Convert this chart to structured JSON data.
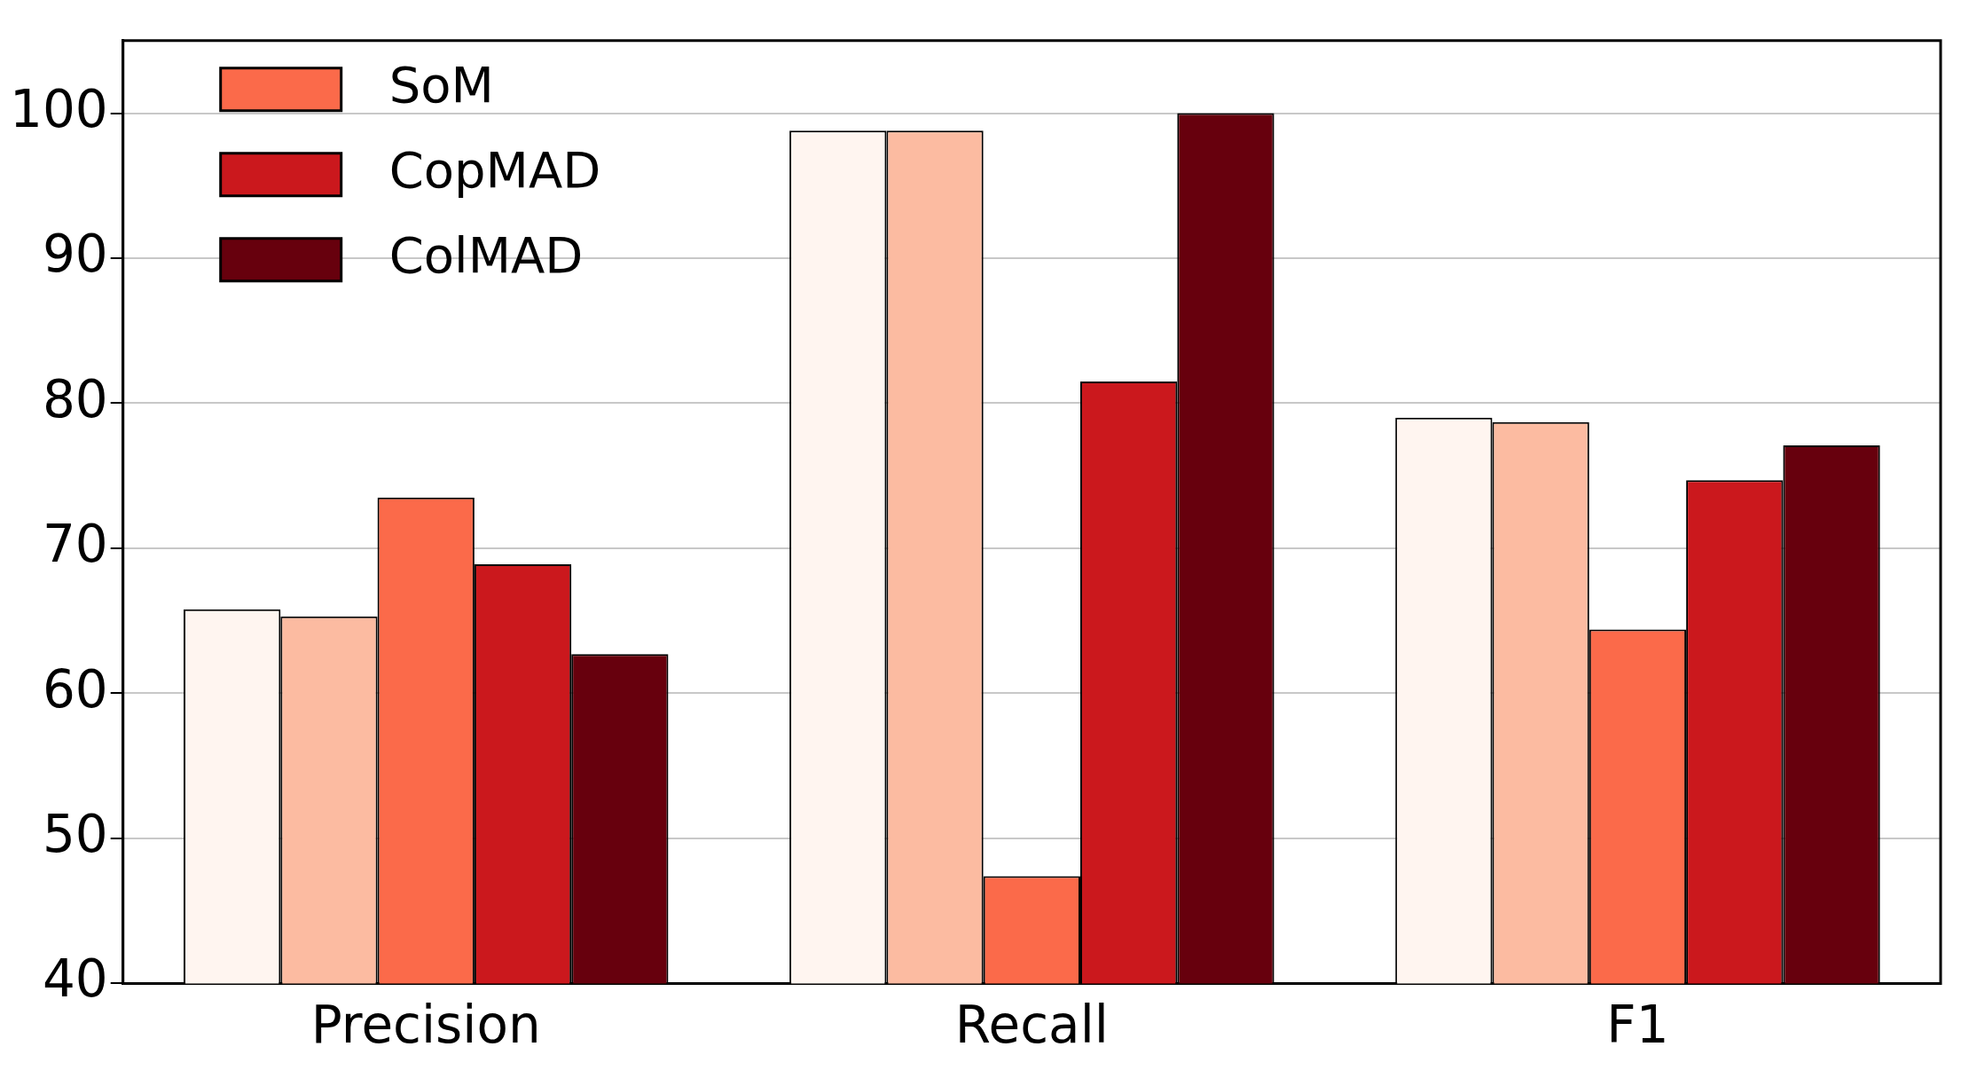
{
  "chart_data": {
    "type": "bar",
    "categories": [
      "Precision",
      "Recall",
      "F1"
    ],
    "series": [
      {
        "color": "#fff5f0",
        "values": [
          65.8,
          98.8,
          79.0
        ]
      },
      {
        "color": "#fcbba1",
        "values": [
          65.3,
          98.8,
          78.7
        ]
      },
      {
        "name": "SoM",
        "color": "#fb6a4a",
        "values": [
          73.5,
          47.4,
          64.4
        ]
      },
      {
        "name": "CopMAD",
        "color": "#cb181d",
        "values": [
          68.9,
          81.5,
          74.7
        ]
      },
      {
        "name": "ColMAD",
        "color": "#67000d",
        "values": [
          62.7,
          100,
          77.1
        ]
      }
    ],
    "ylim": [
      40,
      105
    ],
    "yticks": [
      40,
      50,
      60,
      70,
      80,
      90,
      100
    ],
    "grid": "y",
    "legend": "top left"
  }
}
